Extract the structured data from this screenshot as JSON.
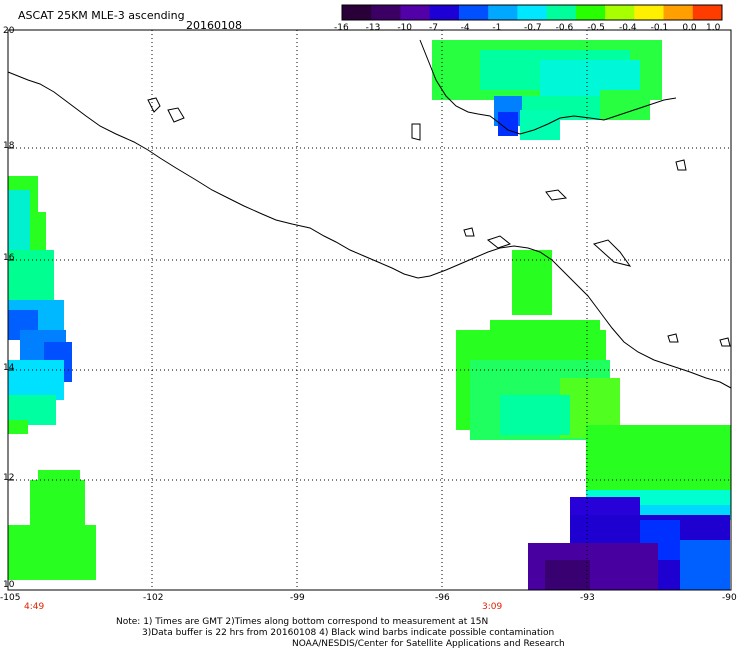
{
  "title": "ASCAT 25KM MLE-3 ascending",
  "date": "20160108",
  "colorbar": {
    "ticks": [
      "-16",
      "-13",
      "-10",
      "-7",
      "-4",
      "-1",
      "-0.7",
      "-0.6",
      "-0.5",
      "-0.4",
      "-0.1",
      "0.0",
      "1.0"
    ],
    "colors": [
      "#2a0038",
      "#3c0064",
      "#5200a8",
      "#1c00d4",
      "#0050ff",
      "#00a8ff",
      "#00e8ff",
      "#00ff9c",
      "#28ff00",
      "#a8ff00",
      "#fff000",
      "#ffa000",
      "#ff3c00"
    ]
  },
  "lat_labels": [
    "20",
    "18",
    "16",
    "14",
    "12",
    "10"
  ],
  "lon_labels": [
    "-105",
    "-102",
    "-99",
    "-96",
    "-93",
    "-90"
  ],
  "time_labels": [
    "4:49",
    "3:09"
  ],
  "time_color": "#e02000",
  "notes": [
    "Note: 1) Times are GMT 2)Times along bottom correspond to measurement at 15N",
    "3)Data buffer is 22 hrs from 20160108 4) Black wind barbs indicate possible contamination",
    "NOAA/NESDIS/Center for Satellite Applications and Research"
  ]
}
